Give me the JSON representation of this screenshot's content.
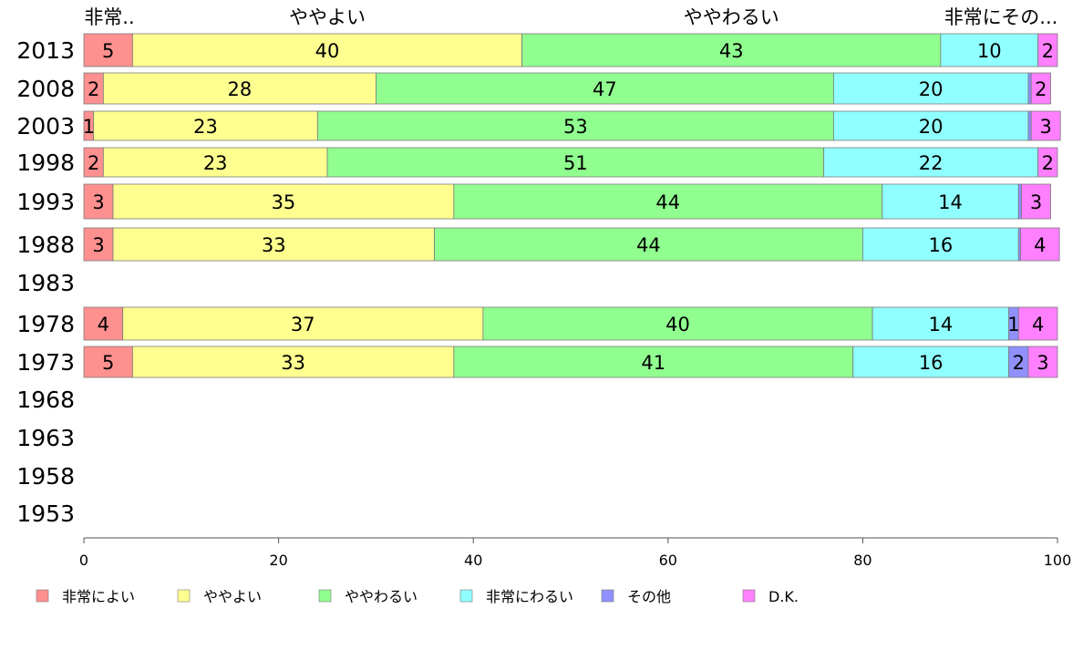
{
  "chart_data": {
    "type": "bar",
    "orientation": "horizontal",
    "stacked": true,
    "categories": [
      "2013",
      "2008",
      "2003",
      "1998",
      "1993",
      "1988",
      "1983",
      "1978",
      "1973",
      "1968",
      "1963",
      "1958",
      "1953"
    ],
    "series": [
      {
        "name": "非常によい",
        "color": "#ff9090",
        "values": [
          5,
          2,
          1,
          2,
          3,
          3,
          null,
          4,
          5,
          null,
          null,
          null,
          null
        ]
      },
      {
        "name": "ややよい",
        "color": "#ffff90",
        "values": [
          40,
          28,
          23,
          23,
          35,
          33,
          null,
          37,
          33,
          null,
          null,
          null,
          null
        ]
      },
      {
        "name": "ややわるい",
        "color": "#90ff90",
        "values": [
          43,
          47,
          53,
          51,
          44,
          44,
          null,
          40,
          41,
          null,
          null,
          null,
          null
        ]
      },
      {
        "name": "非常にわるい",
        "color": "#90ffff",
        "values": [
          10,
          20,
          20,
          22,
          14,
          16,
          null,
          14,
          16,
          null,
          null,
          null,
          null
        ]
      },
      {
        "name": "その他",
        "color": "#9090ff",
        "values": [
          0,
          0.3,
          0.3,
          0,
          0.3,
          0.2,
          null,
          1,
          2,
          null,
          null,
          null,
          null
        ]
      },
      {
        "name": "D.K.",
        "color": "#ff80ff",
        "values": [
          2,
          2,
          3,
          2,
          3,
          4,
          null,
          4,
          3,
          null,
          null,
          null,
          null
        ]
      }
    ],
    "top_labels": [
      "非常..",
      "ややよい",
      "ややわるい",
      "非常にその..."
    ],
    "xlim": [
      0,
      100
    ],
    "xticks": [
      "0",
      "20",
      "40",
      "60",
      "80",
      "100"
    ],
    "legend_position": "bottom",
    "grid": false
  }
}
